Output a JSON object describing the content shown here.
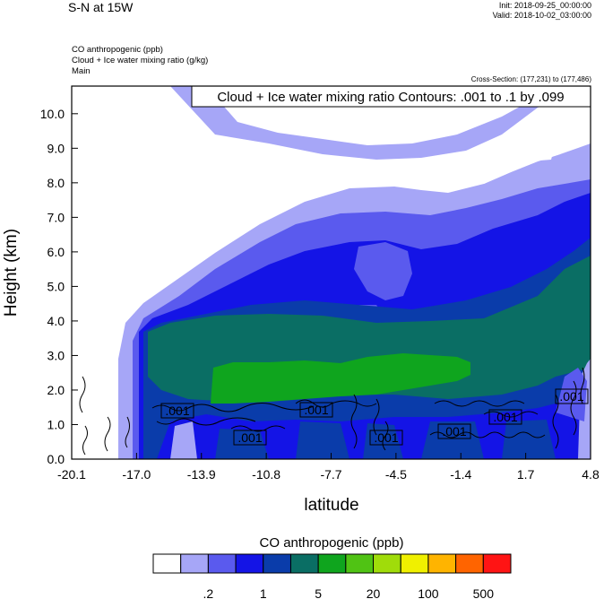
{
  "header": {
    "title": "S-N at 15W",
    "init": "Init: 2018-09-25_00:00:00",
    "valid": "Valid: 2018-10-02_03:00:00",
    "fields": [
      "CO anthropogenic   (ppb)",
      "Cloud + Ice water mixing ratio   (g/kg)",
      "Main"
    ],
    "cross_section": "Cross-Section: (177,231) to (177,486)"
  },
  "chart_data": {
    "type": "heatmap",
    "title": "Cloud + Ice water mixing ratio Contours: .001 to .1 by .099",
    "xlabel": "latitude",
    "ylabel": "Height (km)",
    "x_ticks": [
      "-20.1",
      "-17.0",
      "-13.9",
      "-10.8",
      "-7.7",
      "-4.5",
      "-1.4",
      "1.7",
      "4.8"
    ],
    "y_ticks": [
      "0.0",
      "1.0",
      "2.0",
      "3.0",
      "4.0",
      "5.0",
      "6.0",
      "7.0",
      "8.0",
      "9.0",
      "10.0"
    ],
    "xlim": [
      -20.1,
      4.8
    ],
    "ylim": [
      0,
      10.8
    ],
    "contour_labels": [
      ".001",
      ".001",
      ".001",
      ".001",
      ".001",
      ".001",
      ".001"
    ],
    "colorbar": {
      "title": "CO anthropogenic  (ppb)",
      "colors": [
        "#ffffff",
        "#a6a6f7",
        "#5a5aee",
        "#1414e6",
        "#0a3caa",
        "#0a6e64",
        "#0fa51e",
        "#50c314",
        "#a0dc0a",
        "#f0f000",
        "#ffb400",
        "#ff6400",
        "#ff1414"
      ],
      "labels": [
        ".2",
        "1",
        "5",
        "20",
        "100",
        "500"
      ]
    }
  }
}
